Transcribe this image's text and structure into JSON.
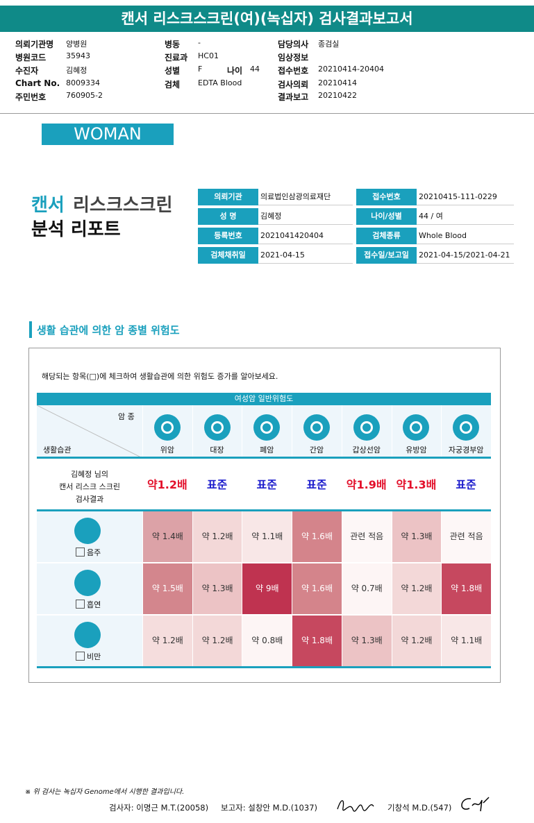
{
  "header": {
    "title": "캔서 리스크스크린(여)(녹십자) 검사결과보고서"
  },
  "info": {
    "columns": [
      [
        {
          "label": "의뢰기관명",
          "value": "양병원"
        },
        {
          "label": "병원코드",
          "value": "35943"
        },
        {
          "label": "수진자",
          "value": "김혜정"
        },
        {
          "label": "Chart No.",
          "value": "8009334"
        },
        {
          "label": "주민번호",
          "value": "760905-2"
        }
      ],
      [
        {
          "label": "병동",
          "value": "-"
        },
        {
          "label": "진료과",
          "value": "HC01"
        },
        {
          "label": "성별",
          "value": "F",
          "extra": {
            "label": "나이",
            "value": "44"
          }
        },
        {
          "label": "검체",
          "value": "EDTA Blood"
        }
      ],
      [
        {
          "label": "담당의사",
          "value": "종검실"
        },
        {
          "label": "임상정보"
        },
        {
          "label": "접수번호",
          "value": "20210414-20404"
        },
        {
          "label": "검사의뢰",
          "value": "20210414"
        },
        {
          "label": "결과보고",
          "value": "20210422"
        }
      ]
    ]
  },
  "banner": "WOMAN",
  "report": {
    "title_accent": "캔서",
    "title_rest": "리스크스크린",
    "subtitle": "분석 리포트",
    "rows": [
      [
        {
          "label": "의뢰기관",
          "value": "의료법인삼광의료재단"
        },
        {
          "label": "접수번호",
          "value": "20210415-111-0229"
        }
      ],
      [
        {
          "label": "성 명",
          "value": "김혜정"
        },
        {
          "label": "나이/성별",
          "value": "44  /   여"
        }
      ],
      [
        {
          "label": "등록번호",
          "value": "2021041420404"
        },
        {
          "label": "검체종류",
          "value": "Whole Blood"
        }
      ],
      [
        {
          "label": "검체채취일",
          "value": "2021-04-15"
        },
        {
          "label": "접수일/보고일",
          "value": "2021-04-15/2021-04-21"
        }
      ]
    ]
  },
  "section": {
    "title": "생활 습관에 의한 암 종별 위험도",
    "instruction": "해당되는 항목(□)에 체크하여 생활습관에 의한 위험도 증가를 알아보세요."
  },
  "table": {
    "group_header": "여성암 일반위험도",
    "corner_top": "암 종",
    "corner_bottom": "생활습관",
    "cancers": [
      "위암",
      "대장",
      "폐암",
      "간암",
      "갑상선암",
      "유방암",
      "자궁경부암"
    ],
    "result_label": [
      "김혜정 님의",
      "캔서 리스크 스크린",
      "검사결과"
    ],
    "results": [
      {
        "text": "약1.2배",
        "color": "#e3102b"
      },
      {
        "text": "표준",
        "color": "#1b1bcc"
      },
      {
        "text": "표준",
        "color": "#1b1bcc"
      },
      {
        "text": "표준",
        "color": "#1b1bcc"
      },
      {
        "text": "약1.9배",
        "color": "#e3102b"
      },
      {
        "text": "약1.3배",
        "color": "#e3102b"
      },
      {
        "text": "표준",
        "color": "#1b1bcc"
      }
    ],
    "habits": [
      {
        "name": "음주",
        "cells": [
          {
            "text": "약 1.4배",
            "color": "#dca2a7"
          },
          {
            "text": "약 1.2배",
            "color": "#f3d8d8"
          },
          {
            "text": "약 1.1배",
            "color": "#f8e7e7"
          },
          {
            "text": "약 1.6배",
            "color": "#d4848b"
          },
          {
            "text": "관련 적음",
            "color": "#fdf7f7"
          },
          {
            "text": "약 1.3배",
            "color": "#ecc3c5"
          },
          {
            "text": "관련 적음",
            "color": "#fdf7f7"
          }
        ]
      },
      {
        "name": "흡연",
        "cells": [
          {
            "text": "약 1.5배",
            "color": "#d3868d"
          },
          {
            "text": "약 1.3배",
            "color": "#ecc3c5"
          },
          {
            "text": "약 9배",
            "color": "#bf3350"
          },
          {
            "text": "약 1.6배",
            "color": "#d4848b"
          },
          {
            "text": "약 0.7배",
            "color": "#fdf5f5"
          },
          {
            "text": "약 1.2배",
            "color": "#f3d8d8"
          },
          {
            "text": "약 1.8배",
            "color": "#c6485f"
          }
        ]
      },
      {
        "name": "비만",
        "cells": [
          {
            "text": "약 1.2배",
            "color": "#f5dddd"
          },
          {
            "text": "약 1.2배",
            "color": "#f3d8d8"
          },
          {
            "text": "약 0.8배",
            "color": "#fdf5f5"
          },
          {
            "text": "약 1.8배",
            "color": "#c6485f"
          },
          {
            "text": "약 1.3배",
            "color": "#ecc3c5"
          },
          {
            "text": "약 1.2배",
            "color": "#f3d8d8"
          },
          {
            "text": "약 1.1배",
            "color": "#f8e7e7"
          }
        ]
      }
    ]
  },
  "footer": {
    "note": "※ 위 검사는 녹십자 Genome에서 시행한 결과입니다.",
    "examiner": "검사자: 이명근 M.T.(20058)",
    "reporter": "보고자: 설창안 M.D.(1037)",
    "approver": "기창석 M.D.(547)"
  }
}
